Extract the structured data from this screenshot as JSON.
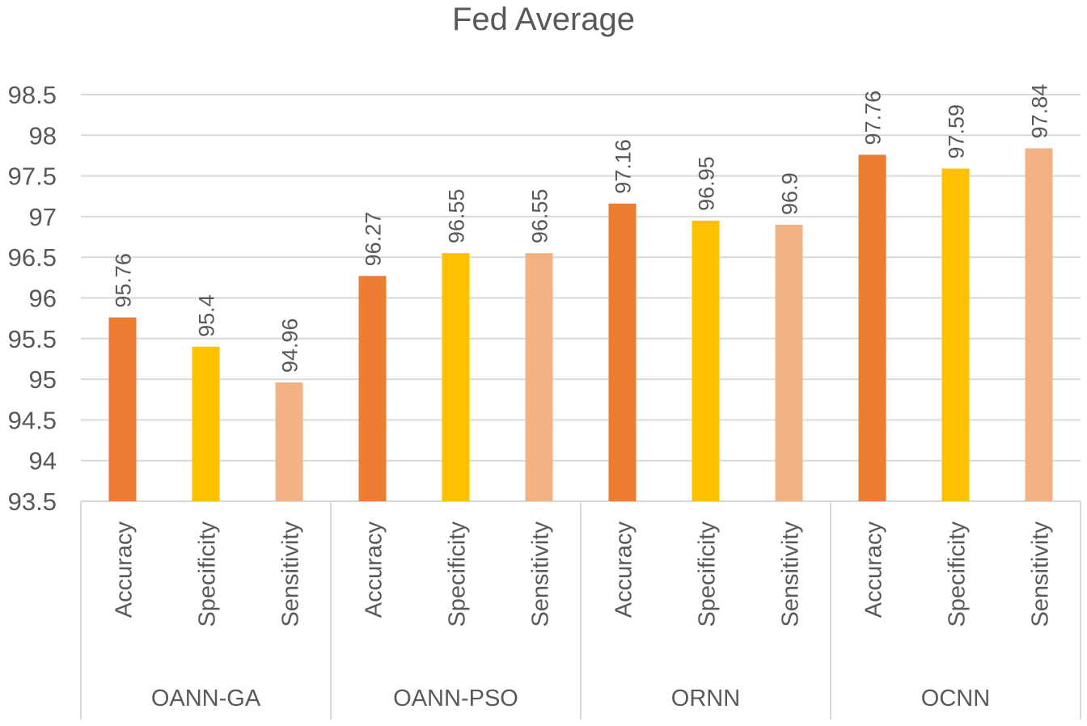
{
  "chart_data": {
    "type": "bar",
    "title": "Fed Average",
    "xlabel": "",
    "ylabel": "",
    "ylim": [
      93.5,
      98.5
    ],
    "y_ticks": [
      "93.5",
      "94",
      "94.5",
      "95",
      "95.5",
      "96",
      "96.5",
      "97",
      "97.5",
      "98",
      "98.5"
    ],
    "grid": true,
    "legend": "none",
    "groups": [
      {
        "name": "OANN-GA",
        "bars": [
          {
            "label": "Accuracy",
            "value": 95.76,
            "value_label": "95.76",
            "color": "#ED7D31"
          },
          {
            "label": "Specificity",
            "value": 95.4,
            "value_label": "95.4",
            "color": "#FFC000"
          },
          {
            "label": "Sensitivity",
            "value": 94.96,
            "value_label": "94.96",
            "color": "#F4B183"
          }
        ]
      },
      {
        "name": "OANN-PSO",
        "bars": [
          {
            "label": "Accuracy",
            "value": 96.27,
            "value_label": "96.27",
            "color": "#ED7D31"
          },
          {
            "label": "Specificity",
            "value": 96.55,
            "value_label": "96.55",
            "color": "#FFC000"
          },
          {
            "label": "Sensitivity",
            "value": 96.55,
            "value_label": "96.55",
            "color": "#F4B183"
          }
        ]
      },
      {
        "name": "ORNN",
        "bars": [
          {
            "label": "Accuracy",
            "value": 97.16,
            "value_label": "97.16",
            "color": "#ED7D31"
          },
          {
            "label": "Specificity",
            "value": 96.95,
            "value_label": "96.95",
            "color": "#FFC000"
          },
          {
            "label": "Sensitivity",
            "value": 96.9,
            "value_label": "96.9",
            "color": "#F4B183"
          }
        ]
      },
      {
        "name": "OCNN",
        "bars": [
          {
            "label": "Accuracy",
            "value": 97.76,
            "value_label": "97.76",
            "color": "#ED7D31"
          },
          {
            "label": "Specificity",
            "value": 97.59,
            "value_label": "97.59",
            "color": "#FFC000"
          },
          {
            "label": "Sensitivity",
            "value": 97.84,
            "value_label": "97.84",
            "color": "#F4B183"
          }
        ]
      }
    ]
  }
}
